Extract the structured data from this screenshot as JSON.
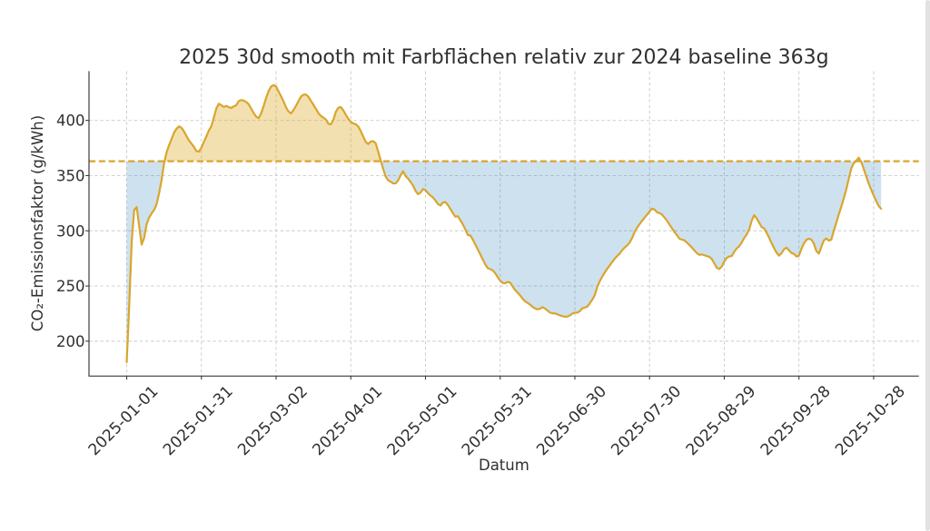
{
  "chart_data": {
    "type": "line",
    "title": "2025 30d smooth mit Farbflächen relativ zur 2024 baseline 363g",
    "xlabel": "Datum",
    "ylabel": "CO₂-Emissionsfaktor (g/kWh)",
    "baseline": {
      "value": 363,
      "year": "2024",
      "style": "dashed"
    },
    "x": [
      "2025-01-01",
      "2025-01-02",
      "2025-01-03",
      "2025-01-04",
      "2025-01-05",
      "2025-01-06",
      "2025-01-07",
      "2025-01-08",
      "2025-01-09",
      "2025-01-10",
      "2025-01-11",
      "2025-01-12",
      "2025-01-13",
      "2025-01-14",
      "2025-01-15",
      "2025-01-16",
      "2025-01-17",
      "2025-01-18",
      "2025-01-19",
      "2025-01-20",
      "2025-01-21",
      "2025-01-22",
      "2025-01-23",
      "2025-01-24",
      "2025-01-25",
      "2025-01-26",
      "2025-01-27",
      "2025-01-28",
      "2025-01-29",
      "2025-01-30",
      "2025-01-31",
      "2025-02-01",
      "2025-02-02",
      "2025-02-03",
      "2025-02-04",
      "2025-02-05",
      "2025-02-06",
      "2025-02-07",
      "2025-02-08",
      "2025-02-09",
      "2025-02-10",
      "2025-02-11",
      "2025-02-12",
      "2025-02-13",
      "2025-02-14",
      "2025-02-15",
      "2025-02-16",
      "2025-02-17",
      "2025-02-18",
      "2025-02-19",
      "2025-02-20",
      "2025-02-21",
      "2025-02-22",
      "2025-02-23",
      "2025-02-24",
      "2025-02-25",
      "2025-02-26",
      "2025-02-27",
      "2025-02-28",
      "2025-03-01",
      "2025-03-02",
      "2025-03-03",
      "2025-03-04",
      "2025-03-05",
      "2025-03-06",
      "2025-03-07",
      "2025-03-08",
      "2025-03-09",
      "2025-03-10",
      "2025-03-11",
      "2025-03-12",
      "2025-03-13",
      "2025-03-14",
      "2025-03-15",
      "2025-03-16",
      "2025-03-17",
      "2025-03-18",
      "2025-03-19",
      "2025-03-20",
      "2025-03-21",
      "2025-03-22",
      "2025-03-23",
      "2025-03-24",
      "2025-03-25",
      "2025-03-26",
      "2025-03-27",
      "2025-03-28",
      "2025-03-29",
      "2025-03-30",
      "2025-03-31",
      "2025-04-01",
      "2025-04-02",
      "2025-04-03",
      "2025-04-04",
      "2025-04-05",
      "2025-04-06",
      "2025-04-07",
      "2025-04-08",
      "2025-04-09",
      "2025-04-10",
      "2025-04-11",
      "2025-04-12",
      "2025-04-13",
      "2025-04-14",
      "2025-04-15",
      "2025-04-16",
      "2025-04-17",
      "2025-04-18",
      "2025-04-19",
      "2025-04-20",
      "2025-04-21",
      "2025-04-22",
      "2025-04-23",
      "2025-04-24",
      "2025-04-25",
      "2025-04-26",
      "2025-04-27",
      "2025-04-28",
      "2025-04-29",
      "2025-04-30",
      "2025-05-01",
      "2025-05-02",
      "2025-05-03",
      "2025-05-04",
      "2025-05-05",
      "2025-05-06",
      "2025-05-07",
      "2025-05-08",
      "2025-05-09",
      "2025-05-10",
      "2025-05-11",
      "2025-05-12",
      "2025-05-13",
      "2025-05-14",
      "2025-05-15",
      "2025-05-16",
      "2025-05-17",
      "2025-05-18",
      "2025-05-19",
      "2025-05-20",
      "2025-05-21",
      "2025-05-22",
      "2025-05-23",
      "2025-05-24",
      "2025-05-25",
      "2025-05-26",
      "2025-05-27",
      "2025-05-28",
      "2025-05-29",
      "2025-05-30",
      "2025-05-31",
      "2025-06-01",
      "2025-06-02",
      "2025-06-03",
      "2025-06-04",
      "2025-06-05",
      "2025-06-06",
      "2025-06-07",
      "2025-06-08",
      "2025-06-09",
      "2025-06-10",
      "2025-06-11",
      "2025-06-12",
      "2025-06-13",
      "2025-06-14",
      "2025-06-15",
      "2025-06-16",
      "2025-06-17",
      "2025-06-18",
      "2025-06-19",
      "2025-06-20",
      "2025-06-21",
      "2025-06-22",
      "2025-06-23",
      "2025-06-24",
      "2025-06-25",
      "2025-06-26",
      "2025-06-27",
      "2025-06-28",
      "2025-06-29",
      "2025-06-30",
      "2025-07-01",
      "2025-07-02",
      "2025-07-03",
      "2025-07-04",
      "2025-07-05",
      "2025-07-06",
      "2025-07-07",
      "2025-07-08",
      "2025-07-09",
      "2025-07-10",
      "2025-07-11",
      "2025-07-12",
      "2025-07-13",
      "2025-07-14",
      "2025-07-15",
      "2025-07-16",
      "2025-07-17",
      "2025-07-18",
      "2025-07-19",
      "2025-07-20",
      "2025-07-21",
      "2025-07-22",
      "2025-07-23",
      "2025-07-24",
      "2025-07-25",
      "2025-07-26",
      "2025-07-27",
      "2025-07-28",
      "2025-07-29",
      "2025-07-30",
      "2025-07-31",
      "2025-08-01",
      "2025-08-02",
      "2025-08-03",
      "2025-08-04",
      "2025-08-05",
      "2025-08-06",
      "2025-08-07",
      "2025-08-08",
      "2025-08-09",
      "2025-08-10",
      "2025-08-11",
      "2025-08-12",
      "2025-08-13",
      "2025-08-14",
      "2025-08-15",
      "2025-08-16",
      "2025-08-17",
      "2025-08-18",
      "2025-08-19",
      "2025-08-20",
      "2025-08-21",
      "2025-08-22",
      "2025-08-23",
      "2025-08-24",
      "2025-08-25",
      "2025-08-26",
      "2025-08-27",
      "2025-08-28",
      "2025-08-29",
      "2025-08-30",
      "2025-08-31",
      "2025-09-01",
      "2025-09-02",
      "2025-09-03",
      "2025-09-04",
      "2025-09-05",
      "2025-09-06",
      "2025-09-07",
      "2025-09-08",
      "2025-09-09",
      "2025-09-10",
      "2025-09-11",
      "2025-09-12",
      "2025-09-13",
      "2025-09-14",
      "2025-09-15",
      "2025-09-16",
      "2025-09-17",
      "2025-09-18",
      "2025-09-19",
      "2025-09-20",
      "2025-09-21",
      "2025-09-22",
      "2025-09-23",
      "2025-09-24",
      "2025-09-25",
      "2025-09-26",
      "2025-09-27",
      "2025-09-28",
      "2025-09-29",
      "2025-09-30",
      "2025-10-01",
      "2025-10-02",
      "2025-10-03",
      "2025-10-04",
      "2025-10-05",
      "2025-10-06",
      "2025-10-07",
      "2025-10-08",
      "2025-10-09",
      "2025-10-10",
      "2025-10-11",
      "2025-10-12",
      "2025-10-13",
      "2025-10-14",
      "2025-10-15",
      "2025-10-16",
      "2025-10-17",
      "2025-10-18",
      "2025-10-19",
      "2025-10-20",
      "2025-10-21",
      "2025-10-22",
      "2025-10-23",
      "2025-10-24",
      "2025-10-25",
      "2025-10-26",
      "2025-10-27",
      "2025-10-28",
      "2025-10-29",
      "2025-10-30",
      "2025-10-31"
    ],
    "series": [
      {
        "name": "2025 30d smooth",
        "values": [
          181.0,
          232.0,
          290.0,
          318.7,
          321.5,
          304.0,
          287.5,
          293.5,
          306.0,
          312.0,
          315.7,
          318.8,
          324.0,
          334.0,
          346.0,
          361.0,
          370.9,
          377.5,
          383.0,
          389.0,
          392.5,
          394.6,
          393.3,
          390.0,
          385.9,
          381.9,
          379.0,
          376.0,
          372.2,
          371.7,
          375.4,
          380.5,
          385.6,
          390.9,
          394.8,
          402.5,
          410.9,
          415.1,
          413.8,
          412.2,
          413.1,
          412.0,
          411.3,
          412.8,
          413.7,
          417.6,
          418.4,
          417.9,
          416.6,
          414.6,
          410.7,
          406.6,
          403.4,
          402.0,
          406.5,
          413.1,
          420.5,
          426.5,
          430.7,
          432.0,
          430.6,
          426.2,
          421.8,
          417.1,
          411.8,
          408.0,
          406.4,
          409.4,
          413.2,
          417.6,
          421.7,
          423.3,
          423.5,
          421.3,
          417.7,
          414.1,
          410.4,
          406.6,
          404.0,
          402.5,
          400.8,
          397.0,
          396.4,
          400.5,
          407.9,
          411.5,
          412.1,
          409.0,
          405.1,
          401.4,
          398.7,
          397.3,
          396.5,
          394.5,
          390.3,
          385.4,
          380.5,
          378.6,
          380.8,
          381.2,
          379.3,
          371.8,
          364.0,
          356.1,
          349.1,
          345.8,
          344.4,
          342.9,
          342.9,
          345.6,
          350.1,
          353.9,
          349.5,
          347.3,
          344.2,
          341.0,
          336.2,
          333.1,
          334.5,
          337.8,
          336.7,
          334.1,
          331.9,
          330.2,
          327.4,
          324.2,
          322.9,
          325.6,
          326.0,
          323.3,
          319.8,
          316.0,
          312.7,
          313.2,
          309.6,
          305.8,
          301.2,
          296.2,
          295.8,
          292.2,
          287.6,
          283.1,
          278.7,
          274.1,
          269.6,
          266.2,
          265.3,
          264.1,
          261.6,
          257.9,
          254.8,
          252.8,
          252.4,
          253.7,
          253.1,
          249.5,
          246.3,
          244.0,
          241.5,
          238.5,
          236.1,
          234.7,
          233.1,
          231.1,
          229.6,
          228.8,
          229.4,
          230.8,
          229.6,
          227.7,
          225.9,
          225.2,
          225.2,
          224.3,
          223.4,
          222.6,
          222.2,
          222.3,
          223.3,
          225.0,
          225.8,
          225.8,
          227.2,
          229.8,
          230.5,
          231.3,
          234.3,
          237.6,
          241.7,
          249.2,
          254.3,
          258.5,
          262.2,
          265.6,
          268.6,
          271.8,
          274.7,
          277.2,
          279.3,
          282.4,
          284.8,
          286.8,
          289.3,
          293.5,
          298.8,
          302.9,
          306.0,
          309.0,
          312.0,
          314.6,
          317.4,
          320.1,
          319.2,
          316.8,
          316.0,
          314.7,
          312.0,
          309.2,
          305.6,
          302.3,
          298.9,
          295.9,
          292.8,
          292.0,
          291.3,
          289.3,
          287.1,
          284.8,
          282.2,
          279.7,
          278.2,
          278.6,
          277.9,
          277.0,
          276.4,
          274.4,
          270.5,
          266.4,
          265.4,
          267.6,
          272.2,
          275.4,
          276.7,
          277.1,
          280.9,
          284.0,
          286.0,
          289.3,
          293.4,
          296.6,
          301.2,
          309.0,
          314.1,
          311.3,
          307.4,
          303.4,
          302.2,
          298.3,
          293.8,
          288.9,
          284.3,
          280.2,
          277.5,
          279.7,
          283.2,
          284.7,
          282.3,
          279.8,
          279.1,
          276.7,
          277.5,
          283.6,
          288.6,
          291.8,
          292.8,
          292.0,
          288.3,
          281.6,
          279.4,
          285.4,
          291.3,
          293.0,
          291.1,
          291.9,
          300.0,
          307.2,
          314.9,
          321.8,
          329.2,
          337.4,
          347.0,
          356.4,
          361.2,
          363.4,
          366.2,
          362.5,
          356.2,
          349.3,
          342.9,
          337.3,
          332.0,
          327.0,
          322.5,
          320.0
        ]
      }
    ],
    "x_tick_labels": [
      "2025-01-01",
      "2025-01-31",
      "2025-03-02",
      "2025-04-01",
      "2025-05-01",
      "2025-05-31",
      "2025-06-30",
      "2025-07-30",
      "2025-08-29",
      "2025-09-28",
      "2025-10-28"
    ],
    "x_tick_days": [
      0,
      30,
      60,
      90,
      120,
      150,
      180,
      210,
      240,
      270,
      300
    ],
    "y_ticks": [
      200,
      250,
      300,
      350,
      400
    ],
    "xlim_days": [
      -15.15,
      318.15
    ],
    "ylim": [
      168.4,
      444.6
    ],
    "grid": true,
    "legend": null,
    "colors": {
      "line": "#d9a62c",
      "baseline": "#d9a62c",
      "fill_above": "rgba(218,165,32,0.35)",
      "fill_below": "rgba(31,119,180,0.22)",
      "grid": "#c9c9c9",
      "spine": "#3c3c3c",
      "text": "#303030",
      "background": "#ffffff"
    }
  },
  "page": {
    "scrollbar_color": "#e2e2e2"
  }
}
